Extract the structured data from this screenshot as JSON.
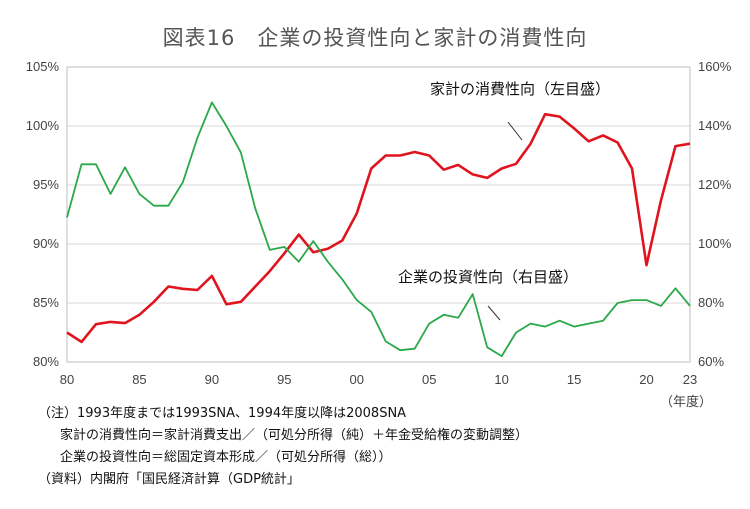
{
  "title": "図表16　企業の投資性向と家計の消費性向",
  "chart_data": {
    "type": "line",
    "x_unit": "（年度）",
    "x_ticks": [
      "80",
      "85",
      "90",
      "95",
      "00",
      "05",
      "10",
      "15",
      "20",
      "23"
    ],
    "x_range": [
      1980,
      2023
    ],
    "y_left": {
      "range": [
        80,
        105
      ],
      "ticks": [
        "80%",
        "85%",
        "90%",
        "95%",
        "100%",
        "105%"
      ]
    },
    "y_right": {
      "range": [
        60,
        160
      ],
      "ticks": [
        "60%",
        "80%",
        "100%",
        "120%",
        "140%",
        "160%"
      ]
    },
    "series": [
      {
        "name": "家計の消費性向（左目盛）",
        "axis": "left",
        "color": "#e0141e",
        "x": [
          1980,
          1981,
          1982,
          1983,
          1984,
          1985,
          1986,
          1987,
          1988,
          1989,
          1990,
          1991,
          1992,
          1993,
          1994,
          1995,
          1996,
          1997,
          1998,
          1999,
          2000,
          2001,
          2002,
          2003,
          2004,
          2005,
          2006,
          2007,
          2008,
          2009,
          2010,
          2011,
          2012,
          2013,
          2014,
          2015,
          2016,
          2017,
          2018,
          2019,
          2020,
          2021,
          2022,
          2023
        ],
        "values": [
          82.5,
          81.7,
          83.2,
          83.4,
          83.3,
          84.0,
          85.1,
          86.4,
          86.2,
          86.1,
          87.3,
          84.9,
          85.1,
          86.4,
          87.7,
          89.2,
          90.8,
          89.3,
          89.6,
          90.3,
          92.6,
          96.4,
          97.5,
          97.5,
          97.8,
          97.5,
          96.3,
          96.7,
          95.9,
          95.6,
          96.4,
          96.8,
          98.5,
          101.0,
          100.8,
          99.8,
          98.7,
          99.2,
          98.6,
          96.4,
          88.2,
          93.7,
          98.3,
          98.5
        ]
      },
      {
        "name": "企業の投資性向（右目盛）",
        "axis": "right",
        "color": "#2ba84a",
        "x": [
          1980,
          1981,
          1982,
          1983,
          1984,
          1985,
          1986,
          1987,
          1988,
          1989,
          1990,
          1991,
          1992,
          1993,
          1994,
          1995,
          1996,
          1997,
          1998,
          1999,
          2000,
          2001,
          2002,
          2003,
          2004,
          2005,
          2006,
          2007,
          2008,
          2009,
          2010,
          2011,
          2012,
          2013,
          2014,
          2015,
          2016,
          2017,
          2018,
          2019,
          2020,
          2021,
          2022,
          2023
        ],
        "values": [
          109,
          127,
          127,
          117,
          126,
          117,
          113,
          113,
          121,
          136,
          148,
          140,
          131,
          112,
          98,
          99,
          94,
          101,
          94,
          88,
          81,
          77,
          67,
          64,
          64.5,
          73,
          76,
          75,
          83,
          65,
          62,
          70,
          73,
          72,
          74,
          72,
          73,
          74,
          80,
          81,
          81,
          79,
          85,
          79
        ]
      }
    ]
  },
  "notes": [
    "（注）1993年度までは1993SNA、1994年度以降は2008SNA",
    "家計の消費性向＝家計消費支出／（可処分所得（純）＋年金受給権の変動調整）",
    "企業の投資性向＝総固定資本形成／（可処分所得（総））",
    "（資料）内閣府「国民経済計算（GDP統計」"
  ]
}
